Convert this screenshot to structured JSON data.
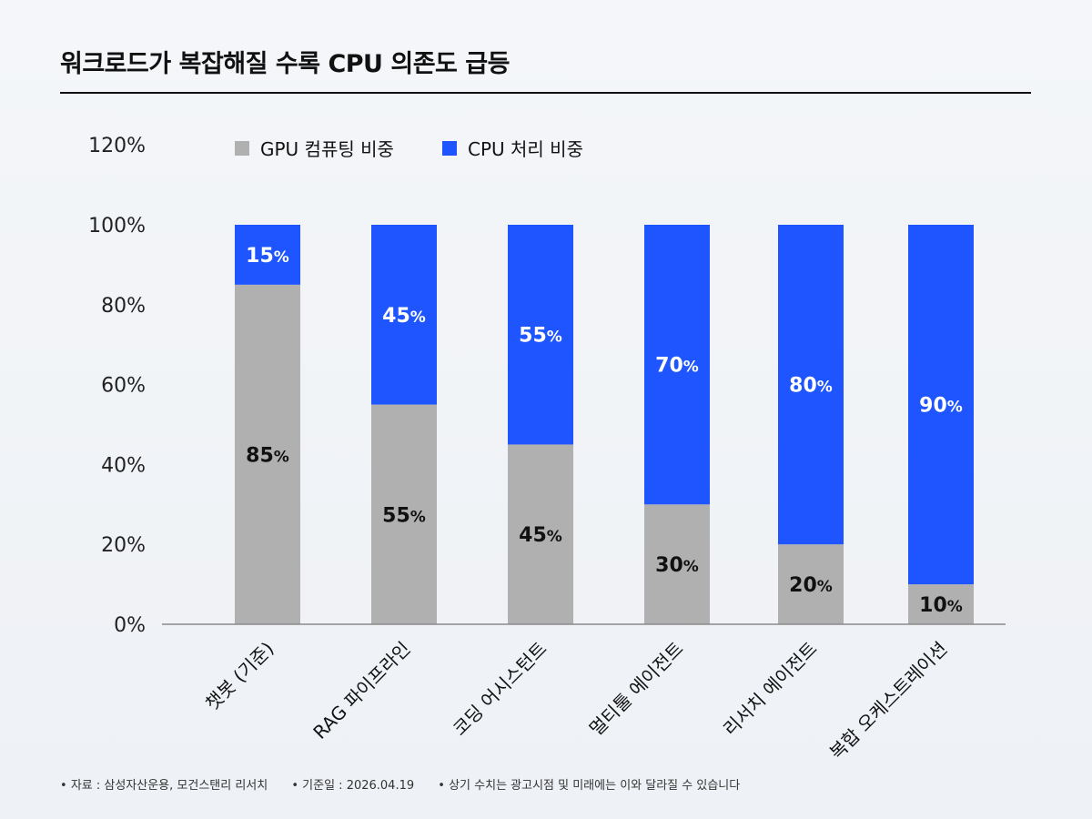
{
  "title": "워크로드가 복잡해질 수록 CPU 의존도 급등",
  "chart_data": {
    "type": "bar",
    "stacked": true,
    "categories": [
      "챗봇 (기준)",
      "RAG 파이프라인",
      "코딩 어시스턴트",
      "멀티툴 에이전트",
      "리서치 에이전트",
      "복합 오케스트레이션"
    ],
    "series": [
      {
        "name": "GPU 컴퓨팅 비중",
        "values": [
          85,
          55,
          45,
          30,
          20,
          10
        ],
        "color": "#b0b0b0",
        "label_color": "#111111"
      },
      {
        "name": "CPU 처리 비중",
        "values": [
          15,
          45,
          55,
          70,
          80,
          90
        ],
        "color": "#1f55ff",
        "label_color": "#ffffff"
      }
    ],
    "value_suffix": "%",
    "yticks": [
      "0%",
      "20%",
      "40%",
      "60%",
      "80%",
      "100%",
      "120%"
    ],
    "ylim": [
      0,
      120
    ],
    "legend_position": "top",
    "grid": false
  },
  "footer": [
    "자료 : 삼성자산운용, 모건스탠리 리서치",
    "기준일 : 2026.04.19",
    "상기 수치는 광고시점 및 미래에는 이와 달라질 수 있습니다"
  ]
}
